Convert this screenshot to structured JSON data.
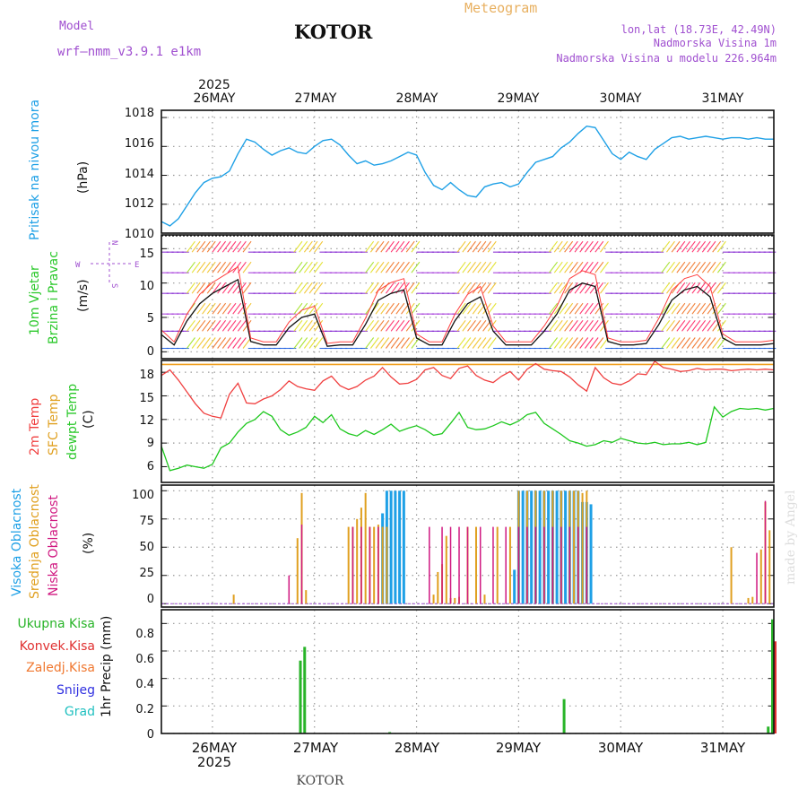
{
  "header": {
    "model_label": "Model",
    "model_name": "wrf—nmm_v3.9.1  e1km",
    "station": "KOTOR",
    "title": "Meteogram",
    "coords": "lon,lat (18.73E, 42.49N)",
    "elevation": "Nadmorska Visina 1m",
    "model_elevation": "Nadmorska Visina u modelu 226.964m",
    "footer_station": "KOTOR",
    "watermark": "made by Angel"
  },
  "time_axis": {
    "year_label": "2025",
    "days": [
      "26MAY",
      "27MAY",
      "28MAY",
      "29MAY",
      "30MAY",
      "31MAY"
    ]
  },
  "colors": {
    "pressure": "#1ea0e6",
    "temp2m": "#f04040",
    "sfc_temp": "#f0a020",
    "dewpt": "#1ec81e",
    "cloud_high": "#1ea0e6",
    "cloud_mid": "#e0a020",
    "cloud_low": "#d01880",
    "precip_total": "#28b428",
    "precip_conv": "#e03030",
    "precip_frz": "#f07830",
    "precip_snow": "#3030e0",
    "precip_hail": "#20c0c0",
    "model_text": "#a050d0",
    "title_text": "#e8b060"
  },
  "panels": {
    "pressure": {
      "label": "Pritisak na nivou mora",
      "unit": "(hPa)",
      "yticks": [
        "1018",
        "1016",
        "1014",
        "1012",
        "1010"
      ]
    },
    "wind": {
      "label1": "10m Vjetar",
      "label2": "Brzina i Pravac",
      "unit": "(m/s)",
      "yticks": [
        "15",
        "10",
        "5",
        "0"
      ],
      "compass": {
        "n": "N",
        "s": "S",
        "e": "E",
        "w": "W"
      }
    },
    "temp": {
      "label1": "2m Temp",
      "label2": "SFC Temp",
      "label3": "dewpt Temp",
      "unit": "(C)",
      "yticks": [
        "18",
        "15",
        "12",
        "9",
        "6"
      ]
    },
    "cloud": {
      "label1": "Visoka Oblacnost",
      "label2": "Srednja Oblacnost",
      "label3": "Niska Oblacnost",
      "unit": "(%)",
      "yticks": [
        "100",
        "75",
        "50",
        "25",
        "0"
      ]
    },
    "precip": {
      "unit": "1hr Precip (mm)",
      "legend": [
        "Ukupna Kisa",
        "Konvek.Kisa",
        "Zaledj.Kisa",
        "Snijeg",
        "Grad"
      ],
      "yticks": [
        "0.8",
        "0.6",
        "0.4",
        "0.2",
        "0"
      ]
    }
  },
  "chart_data": [
    {
      "type": "line",
      "name_key": "pressure",
      "ylabel": "Pritisak na nivou mora (hPa)",
      "ylim": [
        1010,
        1018.5
      ],
      "x_hours": [
        0,
        2,
        4,
        6,
        8,
        10,
        12,
        14,
        16,
        18,
        20,
        22,
        24,
        26,
        28,
        30,
        32,
        34,
        36,
        38,
        40,
        42,
        44,
        46,
        48,
        50,
        52,
        54,
        56,
        58,
        60,
        62,
        64,
        66,
        68,
        70,
        72,
        74,
        76,
        78,
        80,
        82,
        84,
        86,
        88,
        90,
        92,
        94,
        96,
        98,
        100,
        102,
        104,
        106,
        108,
        110,
        112,
        114,
        116,
        118,
        120,
        122,
        124,
        126,
        128,
        130,
        132,
        134,
        136,
        138,
        140,
        142,
        144
      ],
      "series": [
        {
          "values": [
            1010.8,
            1010.5,
            1011.0,
            1011.9,
            1012.8,
            1013.5,
            1013.8,
            1013.9,
            1014.3,
            1015.5,
            1016.5,
            1016.3,
            1015.8,
            1015.4,
            1015.7,
            1015.9,
            1015.6,
            1015.5,
            1016.0,
            1016.4,
            1016.5,
            1016.1,
            1015.4,
            1014.8,
            1015.0,
            1014.7,
            1014.8,
            1015.0,
            1015.3,
            1015.6,
            1015.4,
            1014.2,
            1013.3,
            1013.0,
            1013.5,
            1013.0,
            1012.6,
            1012.5,
            1013.2,
            1013.4,
            1013.5,
            1013.2,
            1013.4,
            1014.2,
            1014.9,
            1015.1,
            1015.3,
            1015.9,
            1016.3,
            1016.9,
            1017.4,
            1017.3,
            1016.4,
            1015.5,
            1015.1,
            1015.6,
            1015.3,
            1015.1,
            1015.8,
            1016.2,
            1016.6,
            1016.7,
            1016.5,
            1016.6,
            1016.7,
            1016.6,
            1016.5,
            1016.6,
            1016.6,
            1016.5,
            1016.6,
            1016.5,
            1016.5
          ]
        }
      ]
    },
    {
      "type": "line",
      "name_key": "wind",
      "ylabel": "10m Vjetar Brzina i Pravac (m/s)",
      "ylim": [
        -1,
        17
      ],
      "x_hours": [
        0,
        3,
        6,
        9,
        12,
        15,
        18,
        21,
        24,
        27,
        30,
        33,
        36,
        39,
        42,
        45,
        48,
        51,
        54,
        57,
        60,
        63,
        66,
        69,
        72,
        75,
        78,
        81,
        84,
        87,
        90,
        93,
        96,
        99,
        102,
        105,
        108,
        111,
        114,
        117,
        120,
        123,
        126,
        129,
        132,
        135,
        138,
        141,
        144
      ],
      "series": [
        {
          "values": [
            2.5,
            1.0,
            4.5,
            7.0,
            8.5,
            9.5,
            10.5,
            1.5,
            1.0,
            1.0,
            3.5,
            5.0,
            5.5,
            0.8,
            1.0,
            1.0,
            4.0,
            7.5,
            8.5,
            9.0,
            2.0,
            1.0,
            1.0,
            4.5,
            7.0,
            8.0,
            3.0,
            1.0,
            1.0,
            1.0,
            3.0,
            5.5,
            9.0,
            10.0,
            9.5,
            1.5,
            1.0,
            1.0,
            1.2,
            4.0,
            7.5,
            9.0,
            9.5,
            8.0,
            2.0,
            1.0,
            1.0,
            1.0,
            1.2
          ]
        }
      ]
    },
    {
      "type": "line",
      "name_key": "temp",
      "ylabel": "Temp (C)",
      "ylim": [
        4,
        19.5
      ],
      "x_hours": [
        0,
        2,
        4,
        6,
        8,
        10,
        12,
        14,
        16,
        18,
        20,
        22,
        24,
        26,
        28,
        30,
        32,
        34,
        36,
        38,
        40,
        42,
        44,
        46,
        48,
        50,
        52,
        54,
        56,
        58,
        60,
        62,
        64,
        66,
        68,
        70,
        72,
        74,
        76,
        78,
        80,
        82,
        84,
        86,
        88,
        90,
        92,
        94,
        96,
        98,
        100,
        102,
        104,
        106,
        108,
        110,
        112,
        114,
        116,
        118,
        120,
        122,
        124,
        126,
        128,
        130,
        132,
        134,
        136,
        138,
        140,
        142,
        144
      ],
      "series": [
        {
          "name": "2m Temp",
          "values": [
            17.6,
            18.3,
            17.0,
            15.5,
            14.0,
            12.8,
            12.4,
            12.2,
            15.2,
            16.6,
            14.1,
            14.0,
            14.6,
            15.0,
            15.8,
            16.9,
            16.2,
            15.9,
            15.7,
            16.9,
            17.5,
            16.3,
            15.8,
            16.2,
            17.0,
            17.5,
            18.6,
            17.4,
            16.5,
            16.6,
            17.1,
            18.3,
            18.6,
            17.6,
            17.2,
            18.5,
            18.8,
            17.6,
            17.0,
            16.7,
            17.5,
            18.1,
            17.0,
            18.4,
            19.1,
            18.4,
            18.2,
            18.1,
            17.4,
            16.4,
            15.6,
            18.6,
            17.3,
            16.6,
            16.4,
            16.9,
            17.8,
            17.7,
            19.4,
            18.6,
            18.4,
            18.1,
            18.2,
            18.5,
            18.3,
            18.4,
            18.4,
            18.2,
            18.3,
            18.4,
            18.3,
            18.4,
            18.3
          ]
        },
        {
          "name": "SFC Temp",
          "values": [
            19.0,
            19.0,
            19.0,
            19.0,
            19.0,
            19.0,
            19.0,
            19.0,
            19.0,
            19.0,
            19.0,
            19.0,
            19.0,
            19.0,
            19.0,
            19.0,
            19.0,
            19.0,
            19.0,
            19.0,
            19.0,
            19.0,
            19.0,
            19.0,
            19.0,
            19.0,
            19.0,
            19.0,
            19.0,
            19.0,
            19.0,
            19.0,
            19.0,
            19.0,
            19.0,
            19.0,
            19.0,
            19.0,
            19.0,
            19.0,
            19.0,
            19.0,
            19.0,
            19.0,
            19.0,
            19.0,
            19.0,
            19.0,
            19.0,
            19.0,
            19.0,
            19.0,
            19.0,
            19.0,
            19.0,
            19.0,
            19.0,
            19.0,
            19.0,
            19.0,
            19.0,
            19.0,
            19.0,
            19.0,
            19.0,
            19.0,
            19.0,
            19.0,
            19.0,
            19.0,
            19.0,
            19.0,
            19.0
          ]
        },
        {
          "name": "dewpt Temp",
          "values": [
            8.6,
            5.5,
            5.8,
            6.2,
            6.0,
            5.8,
            6.3,
            8.4,
            9.0,
            10.4,
            11.5,
            12.0,
            13.0,
            12.4,
            10.7,
            10.0,
            10.4,
            11.0,
            12.4,
            11.6,
            12.6,
            10.8,
            10.2,
            9.9,
            10.6,
            10.1,
            10.7,
            11.4,
            10.5,
            10.9,
            11.2,
            10.7,
            10.0,
            10.2,
            11.5,
            12.9,
            11.0,
            10.7,
            10.8,
            11.2,
            11.7,
            11.3,
            11.8,
            12.6,
            12.9,
            11.5,
            10.8,
            10.1,
            9.3,
            9.0,
            8.6,
            8.8,
            9.3,
            9.1,
            9.6,
            9.3,
            9.0,
            8.9,
            9.1,
            8.8,
            8.9,
            8.9,
            9.1,
            8.8,
            9.1,
            13.6,
            12.3,
            13.0,
            13.4,
            13.3,
            13.4,
            13.2,
            13.4
          ]
        }
      ]
    },
    {
      "type": "bar",
      "name_key": "cloud",
      "ylabel": "Oblacnost (%)",
      "ylim": [
        0,
        100
      ],
      "series": [
        {
          "name": "Visoka Oblacnost",
          "bars": [
            [
              52,
              80
            ],
            [
              53,
              100
            ],
            [
              54,
              100
            ],
            [
              55,
              100
            ],
            [
              56,
              100
            ],
            [
              57,
              100
            ],
            [
              83,
              30
            ],
            [
              84,
              100
            ],
            [
              85,
              100
            ],
            [
              86,
              100
            ],
            [
              87,
              100
            ],
            [
              88,
              100
            ],
            [
              89,
              100
            ],
            [
              90,
              100
            ],
            [
              91,
              100
            ],
            [
              92,
              100
            ],
            [
              93,
              100
            ],
            [
              94,
              100
            ],
            [
              95,
              100
            ],
            [
              96,
              100
            ],
            [
              97,
              100
            ],
            [
              98,
              100
            ],
            [
              99,
              90
            ],
            [
              100,
              90
            ],
            [
              101,
              88
            ]
          ]
        },
        {
          "name": "Srednja Oblacnost",
          "bars": [
            [
              17,
              8
            ],
            [
              32,
              58
            ],
            [
              33,
              98
            ],
            [
              34,
              12
            ],
            [
              44,
              68
            ],
            [
              45,
              68
            ],
            [
              46,
              75
            ],
            [
              47,
              85
            ],
            [
              48,
              98
            ],
            [
              49,
              68
            ],
            [
              50,
              68
            ],
            [
              51,
              70
            ],
            [
              52,
              68
            ],
            [
              53,
              68
            ],
            [
              64,
              8
            ],
            [
              65,
              28
            ],
            [
              66,
              35
            ],
            [
              67,
              60
            ],
            [
              68,
              5
            ],
            [
              69,
              5
            ],
            [
              70,
              6
            ],
            [
              72,
              68
            ],
            [
              74,
              68
            ],
            [
              76,
              8
            ],
            [
              79,
              68
            ],
            [
              82,
              68
            ],
            [
              84,
              100
            ],
            [
              86,
              100
            ],
            [
              88,
              100
            ],
            [
              90,
              100
            ],
            [
              92,
              100
            ],
            [
              94,
              100
            ],
            [
              96,
              100
            ],
            [
              97,
              100
            ],
            [
              98,
              100
            ],
            [
              99,
              98
            ],
            [
              100,
              100
            ],
            [
              134,
              50
            ],
            [
              138,
              5
            ],
            [
              139,
              6
            ],
            [
              141,
              48
            ],
            [
              142,
              90
            ],
            [
              143,
              65
            ]
          ]
        },
        {
          "name": "Niska Oblacnost",
          "bars": [
            [
              30,
              25
            ],
            [
              33,
              70
            ],
            [
              45,
              68
            ],
            [
              47,
              68
            ],
            [
              49,
              68
            ],
            [
              51,
              68
            ],
            [
              63,
              68
            ],
            [
              66,
              68
            ],
            [
              68,
              68
            ],
            [
              70,
              68
            ],
            [
              72,
              68
            ],
            [
              75,
              68
            ],
            [
              78,
              68
            ],
            [
              81,
              68
            ],
            [
              84,
              68
            ],
            [
              86,
              68
            ],
            [
              88,
              68
            ],
            [
              90,
              68
            ],
            [
              92,
              68
            ],
            [
              94,
              68
            ],
            [
              96,
              68
            ],
            [
              98,
              68
            ],
            [
              100,
              68
            ],
            [
              140,
              45
            ],
            [
              142,
              91
            ]
          ]
        }
      ]
    },
    {
      "type": "bar",
      "name_key": "precip",
      "ylabel": "1hr Precip (mm)",
      "ylim": [
        0,
        0.9
      ],
      "series": [
        {
          "name": "Ukupna Kisa",
          "bars": [
            [
              33,
              0.53
            ],
            [
              34,
              0.63
            ],
            [
              54,
              0.01
            ],
            [
              95,
              0.25
            ],
            [
              143,
              0.05
            ],
            [
              144,
              0.83
            ]
          ]
        },
        {
          "name": "Konvek.Kisa",
          "bars": [
            [
              144,
              0.67
            ]
          ]
        }
      ]
    }
  ]
}
